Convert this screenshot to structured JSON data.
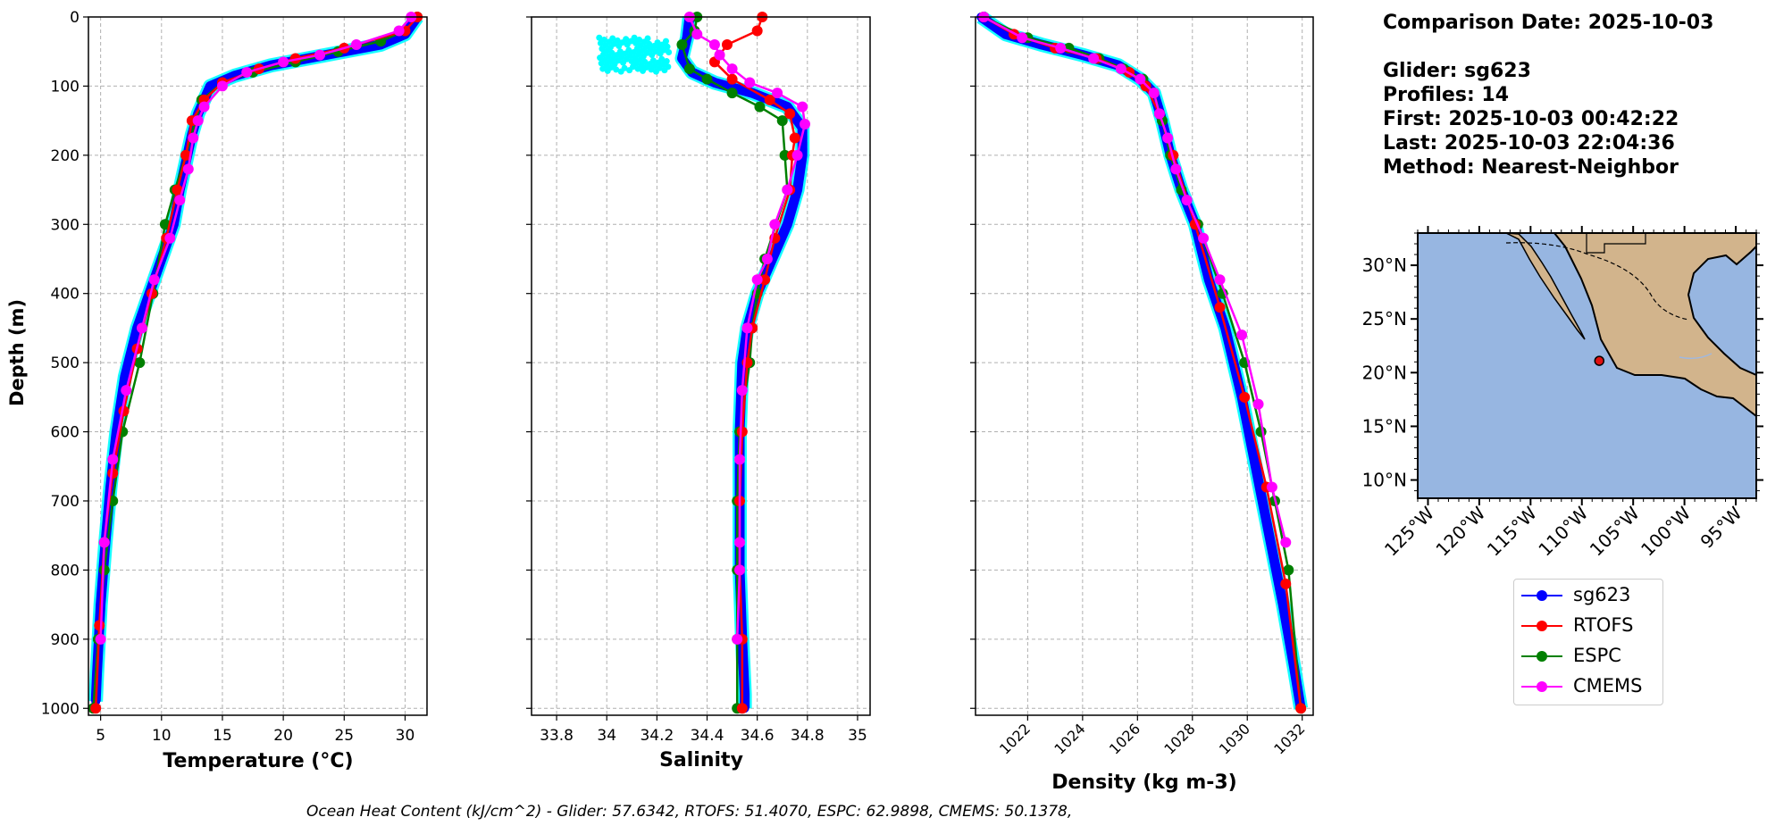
{
  "info": {
    "comparison_date": "Comparison Date: 2025-10-03",
    "glider": "Glider: sg623",
    "profiles": "Profiles: 14",
    "first": "First: 2025-10-03 00:42:22",
    "last": "Last: 2025-10-03 22:04:36",
    "method": "Method: Nearest-Neighbor"
  },
  "footer": "Ocean Heat Content (kJ/cm^2) - Glider: 57.6342,  RTOFS: 51.4070,  ESPC: 62.9898,  CMEMS: 50.1378,",
  "colors": {
    "sg623": "#0000ff",
    "sg623_raw": "#00ffff",
    "RTOFS": "#ff0000",
    "ESPC": "#008000",
    "CMEMS": "#ff00ff",
    "ocean": "#97b6e1",
    "land": "#d2b48c"
  },
  "legend": [
    {
      "name": "sg623",
      "color": "#0000ff"
    },
    {
      "name": "RTOFS",
      "color": "#ff0000"
    },
    {
      "name": "ESPC",
      "color": "#008000"
    },
    {
      "name": "CMEMS",
      "color": "#ff00ff"
    }
  ],
  "map": {
    "lat_ticks": [
      "30°N",
      "25°N",
      "20°N",
      "15°N",
      "10°N"
    ],
    "lon_ticks": [
      "125°W",
      "120°W",
      "115°W",
      "110°W",
      "105°W",
      "100°W",
      "95°W"
    ],
    "lon_range": [
      -126,
      -93
    ],
    "lat_range": [
      8.3,
      33
    ],
    "glider_location": {
      "lon": -108.3,
      "lat": 21.1
    }
  },
  "chart_data": [
    {
      "type": "line",
      "xlabel": "Temperature (°C)",
      "ylabel": "Depth (m)",
      "xlim": [
        4,
        31.8
      ],
      "ylim": [
        1010,
        0
      ],
      "x_ticks": [
        5,
        10,
        15,
        20,
        25,
        30
      ],
      "y_ticks": [
        0,
        100,
        200,
        300,
        400,
        500,
        600,
        700,
        800,
        900,
        1000
      ],
      "grid": true,
      "series": [
        {
          "name": "sg623",
          "x": [
            31,
            30,
            28,
            25,
            22,
            19,
            16,
            14,
            13,
            12.5,
            12,
            11.5,
            11,
            10,
            9,
            8,
            7,
            6.3,
            5.8,
            5.4,
            5.0,
            4.7,
            4.6
          ],
          "y": [
            0,
            25,
            40,
            50,
            60,
            70,
            85,
            100,
            140,
            170,
            210,
            250,
            300,
            350,
            400,
            450,
            520,
            600,
            680,
            760,
            850,
            950,
            990
          ]
        },
        {
          "name": "RTOFS",
          "x": [
            31,
            30,
            25,
            21,
            18,
            15,
            13.5,
            12.5,
            12,
            11.3,
            10.4,
            9.2,
            8.0,
            6.9,
            6.0,
            5.3,
            4.9,
            4.6
          ],
          "y": [
            0,
            20,
            45,
            60,
            75,
            95,
            120,
            150,
            200,
            250,
            320,
            400,
            480,
            570,
            660,
            760,
            880,
            1000
          ]
        },
        {
          "name": "ESPC",
          "x": [
            31,
            30,
            28,
            24.5,
            21,
            17.5,
            15,
            13.3,
            12.8,
            12,
            11.1,
            10.3,
            9.3,
            8.2,
            6.8,
            6.0,
            5.3,
            4.8,
            4.4
          ],
          "y": [
            0,
            20,
            35,
            50,
            65,
            80,
            95,
            120,
            150,
            200,
            250,
            300,
            400,
            500,
            600,
            700,
            800,
            900,
            1000
          ]
        },
        {
          "name": "CMEMS",
          "x": [
            30.5,
            29.5,
            26,
            23,
            20,
            17,
            15,
            13.5,
            13,
            12.6,
            12.2,
            11.5,
            10.7,
            9.4,
            8.4,
            7.1,
            6.0,
            5.3,
            5.0
          ],
          "y": [
            0,
            20,
            40,
            55,
            65,
            80,
            100,
            130,
            150,
            175,
            220,
            265,
            320,
            380,
            450,
            540,
            640,
            760,
            900
          ]
        }
      ]
    },
    {
      "type": "line",
      "xlabel": "Salinity",
      "xlim": [
        33.7,
        35.05
      ],
      "ylim": [
        1010,
        0
      ],
      "x_ticks": [
        33.8,
        34.0,
        34.2,
        34.4,
        34.6,
        34.8,
        35.0
      ],
      "grid": true,
      "series": [
        {
          "name": "sg623",
          "x": [
            34.33,
            34.32,
            34.3,
            34.34,
            34.43,
            34.58,
            34.72,
            34.78,
            34.78,
            34.76,
            34.72,
            34.66,
            34.6,
            34.56,
            34.54,
            34.53,
            34.53,
            34.53,
            34.54,
            34.55,
            34.55
          ],
          "y": [
            0,
            30,
            60,
            80,
            95,
            110,
            130,
            160,
            200,
            250,
            300,
            350,
            400,
            450,
            500,
            600,
            700,
            800,
            900,
            980,
            1000
          ]
        },
        {
          "name": "RTOFS",
          "x": [
            34.62,
            34.6,
            34.48,
            34.43,
            34.5,
            34.65,
            34.73,
            34.75,
            34.74,
            34.73,
            34.67,
            34.63,
            34.58,
            34.56,
            34.54,
            34.53,
            34.53,
            34.54,
            34.54
          ],
          "y": [
            0,
            20,
            40,
            65,
            90,
            120,
            140,
            175,
            200,
            250,
            320,
            380,
            450,
            500,
            600,
            700,
            800,
            900,
            1000
          ]
        },
        {
          "name": "ESPC",
          "x": [
            34.36,
            34.35,
            34.3,
            34.33,
            34.4,
            34.5,
            34.61,
            34.7,
            34.71,
            34.72,
            34.63,
            34.6,
            34.58,
            34.57,
            34.53,
            34.52,
            34.52,
            34.52,
            34.52
          ],
          "y": [
            0,
            20,
            40,
            75,
            90,
            110,
            130,
            150,
            200,
            250,
            350,
            400,
            450,
            500,
            600,
            700,
            800,
            900,
            1000
          ]
        },
        {
          "name": "CMEMS",
          "x": [
            34.33,
            34.36,
            34.43,
            34.45,
            34.5,
            34.57,
            34.68,
            34.78,
            34.79,
            34.76,
            34.72,
            34.67,
            34.64,
            34.6,
            34.56,
            34.54,
            34.53,
            34.53,
            34.53,
            34.52
          ],
          "y": [
            0,
            25,
            40,
            55,
            75,
            95,
            110,
            130,
            155,
            200,
            250,
            300,
            350,
            380,
            450,
            540,
            640,
            760,
            800,
            900
          ]
        }
      ]
    },
    {
      "type": "line",
      "xlabel": "Density (kg m-3)",
      "xlim": [
        1020.1,
        1032.4
      ],
      "ylim": [
        1010,
        0
      ],
      "x_ticks": [
        1022,
        1024,
        1026,
        1028,
        1030,
        1032
      ],
      "grid": true,
      "series": [
        {
          "name": "sg623",
          "x": [
            1020.3,
            1021.2,
            1022.5,
            1024,
            1025.3,
            1026.1,
            1026.6,
            1026.9,
            1027.2,
            1027.6,
            1028.1,
            1028.6,
            1029.2,
            1029.8,
            1030.3,
            1030.8,
            1031.3,
            1031.7,
            1031.95
          ],
          "y": [
            0,
            25,
            40,
            55,
            70,
            90,
            110,
            150,
            200,
            250,
            300,
            380,
            450,
            550,
            650,
            750,
            850,
            940,
            1000
          ]
        },
        {
          "name": "RTOFS",
          "x": [
            1020.4,
            1021.5,
            1023,
            1024.5,
            1025.7,
            1026.3,
            1026.8,
            1027.3,
            1028.1,
            1029.0,
            1029.9,
            1030.7,
            1031.4,
            1031.95
          ],
          "y": [
            0,
            25,
            45,
            60,
            80,
            100,
            140,
            200,
            300,
            420,
            550,
            680,
            820,
            1000
          ]
        },
        {
          "name": "ESPC",
          "x": [
            1020.4,
            1022,
            1023.5,
            1024.6,
            1025.5,
            1026.2,
            1026.6,
            1026.9,
            1027.2,
            1027.6,
            1028.2,
            1029.1,
            1029.9,
            1030.5,
            1031.0,
            1031.5,
            1031.95
          ],
          "y": [
            0,
            30,
            45,
            60,
            75,
            90,
            110,
            150,
            200,
            250,
            300,
            400,
            500,
            600,
            700,
            800,
            1000
          ]
        },
        {
          "name": "CMEMS",
          "x": [
            1020.4,
            1021.8,
            1023.2,
            1024.4,
            1025.4,
            1026.1,
            1026.6,
            1026.8,
            1027.1,
            1027.4,
            1027.8,
            1028.4,
            1029.0,
            1029.8,
            1030.4,
            1030.9,
            1031.4
          ],
          "y": [
            0,
            30,
            45,
            60,
            75,
            90,
            110,
            140,
            175,
            220,
            265,
            320,
            380,
            460,
            560,
            680,
            760
          ]
        }
      ]
    }
  ]
}
